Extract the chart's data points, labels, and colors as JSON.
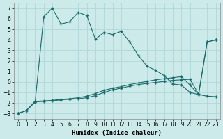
{
  "xlabel": "Humidex (Indice chaleur)",
  "bg_color": "#cceaea",
  "line_color": "#1a6b6b",
  "grid_color": "#aad4d4",
  "xlim": [
    -0.5,
    23.5
  ],
  "ylim": [
    -3.5,
    7.5
  ],
  "xticks": [
    0,
    1,
    2,
    3,
    4,
    5,
    6,
    7,
    8,
    9,
    10,
    11,
    12,
    13,
    14,
    15,
    16,
    17,
    18,
    19,
    20,
    21,
    22,
    23
  ],
  "yticks": [
    -3,
    -2,
    -1,
    0,
    1,
    2,
    3,
    4,
    5,
    6,
    7
  ],
  "series1_x": [
    0,
    1,
    2,
    3,
    4,
    5,
    6,
    7,
    8,
    9,
    10,
    11,
    12,
    13,
    14,
    15,
    16,
    17,
    18,
    19,
    20,
    21,
    22,
    23
  ],
  "series1_y": [
    -3.0,
    -2.7,
    -1.9,
    6.2,
    7.0,
    5.5,
    5.7,
    6.6,
    6.3,
    4.05,
    4.7,
    4.5,
    4.8,
    3.8,
    2.5,
    1.5,
    1.1,
    0.6,
    -0.2,
    -0.3,
    -1.0,
    -1.2,
    3.8,
    4.0
  ],
  "series2_x": [
    0,
    1,
    2,
    3,
    4,
    5,
    6,
    7,
    8,
    9,
    10,
    11,
    12,
    13,
    14,
    15,
    16,
    17,
    18,
    19,
    20,
    21,
    22,
    23
  ],
  "series2_y": [
    -3.0,
    -2.7,
    -1.85,
    -1.8,
    -1.75,
    -1.65,
    -1.6,
    -1.5,
    -1.35,
    -1.1,
    -0.8,
    -0.6,
    -0.45,
    -0.25,
    -0.1,
    0.05,
    0.2,
    0.3,
    0.4,
    0.5,
    -0.3,
    -1.2,
    -1.35,
    -1.4
  ],
  "series3_x": [
    0,
    1,
    2,
    3,
    4,
    5,
    6,
    7,
    8,
    9,
    10,
    11,
    12,
    13,
    14,
    15,
    16,
    17,
    18,
    19,
    20,
    21,
    22,
    23
  ],
  "series3_y": [
    -3.0,
    -2.7,
    -1.9,
    -1.85,
    -1.8,
    -1.7,
    -1.65,
    -1.6,
    -1.5,
    -1.3,
    -1.0,
    -0.75,
    -0.6,
    -0.4,
    -0.25,
    -0.15,
    -0.05,
    0.05,
    0.15,
    0.2,
    0.25,
    -1.15,
    3.8,
    4.0
  ]
}
